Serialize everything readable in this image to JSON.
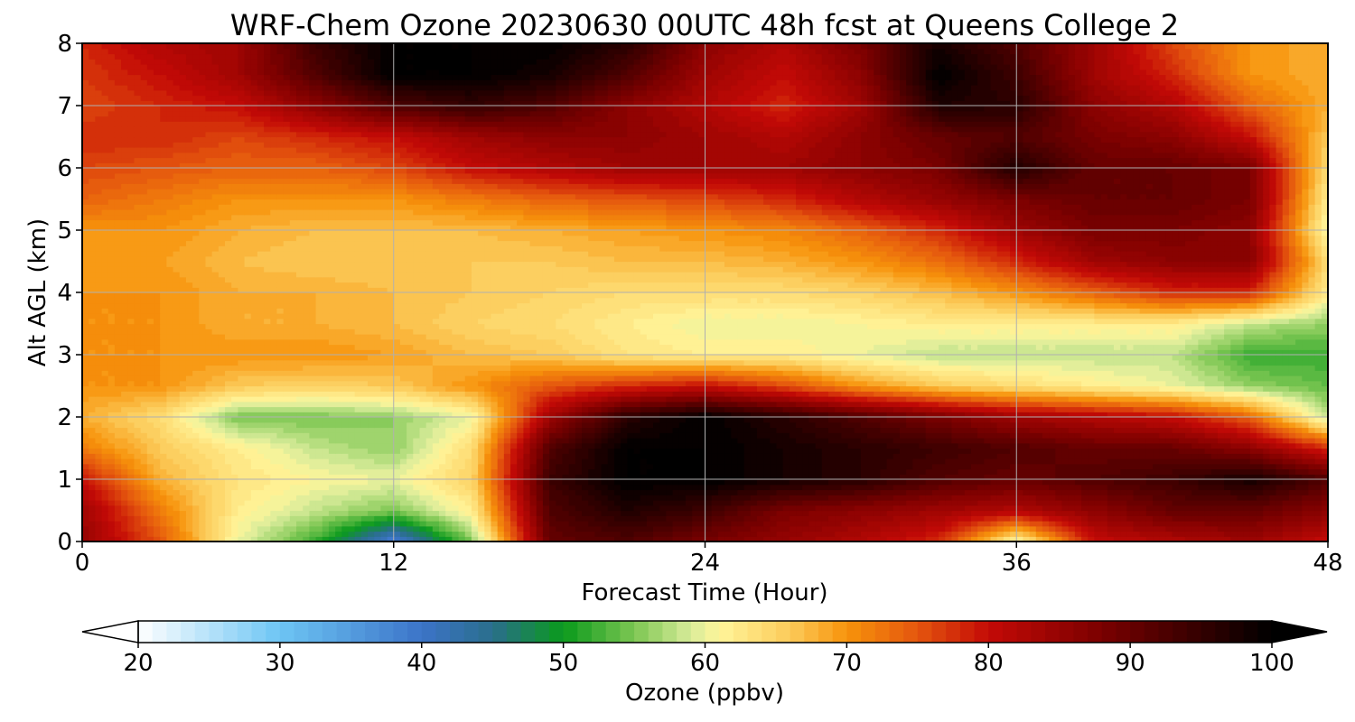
{
  "chart_data": {
    "type": "heatmap",
    "title": "WRF-Chem Ozone  20230630 00UTC 48h fcst at Queens College 2",
    "xlabel": "Forecast Time (Hour)",
    "ylabel": "Alt AGL (km)",
    "xlim": [
      0,
      48
    ],
    "ylim": [
      0,
      8
    ],
    "x_ticks": [
      0,
      12,
      24,
      36,
      48
    ],
    "y_ticks": [
      0,
      1,
      2,
      3,
      4,
      5,
      6,
      7,
      8
    ],
    "grid": true,
    "x": [
      0,
      3,
      6,
      9,
      12,
      15,
      18,
      21,
      24,
      27,
      30,
      33,
      36,
      39,
      42,
      45,
      48
    ],
    "y": [
      0,
      0.5,
      1,
      1.5,
      2,
      2.5,
      3,
      3.5,
      4,
      4.5,
      5,
      5.5,
      6,
      6.5,
      7,
      7.5,
      8
    ],
    "z_rows_by_altitude": [
      [
        85,
        75,
        60,
        52,
        38,
        55,
        90,
        92,
        88,
        85,
        82,
        78,
        60,
        80,
        82,
        84,
        80
      ],
      [
        84,
        72,
        62,
        58,
        55,
        62,
        92,
        97,
        94,
        88,
        86,
        84,
        82,
        86,
        90,
        90,
        86
      ],
      [
        80,
        68,
        63,
        61,
        60,
        65,
        94,
        100,
        100,
        98,
        96,
        92,
        90,
        92,
        94,
        98,
        92
      ],
      [
        72,
        66,
        62,
        58,
        56,
        64,
        92,
        100,
        100,
        98,
        96,
        94,
        92,
        90,
        90,
        86,
        78
      ],
      [
        68,
        64,
        55,
        55,
        56,
        60,
        84,
        96,
        100,
        96,
        92,
        88,
        84,
        82,
        80,
        74,
        58
      ],
      [
        70,
        70,
        66,
        65,
        66,
        70,
        75,
        78,
        80,
        76,
        70,
        66,
        64,
        62,
        60,
        56,
        54
      ],
      [
        70,
        70,
        70,
        70,
        69,
        67,
        66,
        63,
        62,
        62,
        60,
        58,
        58,
        58,
        58,
        52,
        52
      ],
      [
        70,
        70,
        68,
        68,
        67,
        65,
        64,
        62,
        60,
        60,
        61,
        62,
        62,
        62,
        62,
        58,
        56
      ],
      [
        70,
        70,
        68,
        68,
        67,
        66,
        65,
        64,
        64,
        64,
        65,
        67,
        70,
        74,
        78,
        78,
        62
      ],
      [
        70,
        69,
        67,
        66,
        66,
        66,
        66,
        67,
        67,
        68,
        70,
        73,
        78,
        84,
        86,
        86,
        64
      ],
      [
        70,
        70,
        68,
        67,
        67,
        67,
        68,
        69,
        70,
        71,
        74,
        78,
        84,
        88,
        88,
        86,
        60
      ],
      [
        74,
        72,
        70,
        70,
        70,
        72,
        74,
        75,
        76,
        78,
        82,
        85,
        88,
        90,
        90,
        88,
        62
      ],
      [
        76,
        75,
        74,
        74,
        76,
        80,
        82,
        84,
        84,
        84,
        86,
        88,
        97,
        90,
        90,
        88,
        64
      ],
      [
        78,
        78,
        76,
        78,
        80,
        84,
        86,
        86,
        84,
        82,
        86,
        90,
        92,
        88,
        86,
        80,
        66
      ],
      [
        76,
        78,
        80,
        86,
        92,
        95,
        92,
        86,
        82,
        78,
        84,
        97,
        96,
        86,
        82,
        74,
        68
      ],
      [
        77,
        80,
        84,
        92,
        100,
        100,
        98,
        92,
        84,
        80,
        86,
        100,
        94,
        84,
        78,
        70,
        68
      ],
      [
        78,
        82,
        84,
        94,
        100,
        100,
        100,
        96,
        86,
        82,
        88,
        98,
        92,
        84,
        76,
        70,
        68
      ]
    ],
    "colorbar": {
      "label": "Ozone  (ppbv)",
      "min": 20,
      "max": 100,
      "step": 1,
      "ticks": [
        20,
        30,
        40,
        50,
        60,
        70,
        80,
        90,
        100
      ],
      "extend": "both",
      "stops": [
        {
          "v": 20,
          "c": "#ffffff"
        },
        {
          "v": 30,
          "c": "#6dc5f4"
        },
        {
          "v": 40,
          "c": "#3c74c8"
        },
        {
          "v": 45,
          "c": "#2a6e8c"
        },
        {
          "v": 50,
          "c": "#0a9a1c"
        },
        {
          "v": 55,
          "c": "#7cc652"
        },
        {
          "v": 59,
          "c": "#d8ec9a"
        },
        {
          "v": 61,
          "c": "#fff59a"
        },
        {
          "v": 66,
          "c": "#fccb5a"
        },
        {
          "v": 70,
          "c": "#f7930b"
        },
        {
          "v": 75,
          "c": "#e4560e"
        },
        {
          "v": 80,
          "c": "#c40a06"
        },
        {
          "v": 88,
          "c": "#7a0000"
        },
        {
          "v": 100,
          "c": "#000000"
        }
      ],
      "under_color": "#ffffff",
      "over_color": "#000000"
    }
  }
}
